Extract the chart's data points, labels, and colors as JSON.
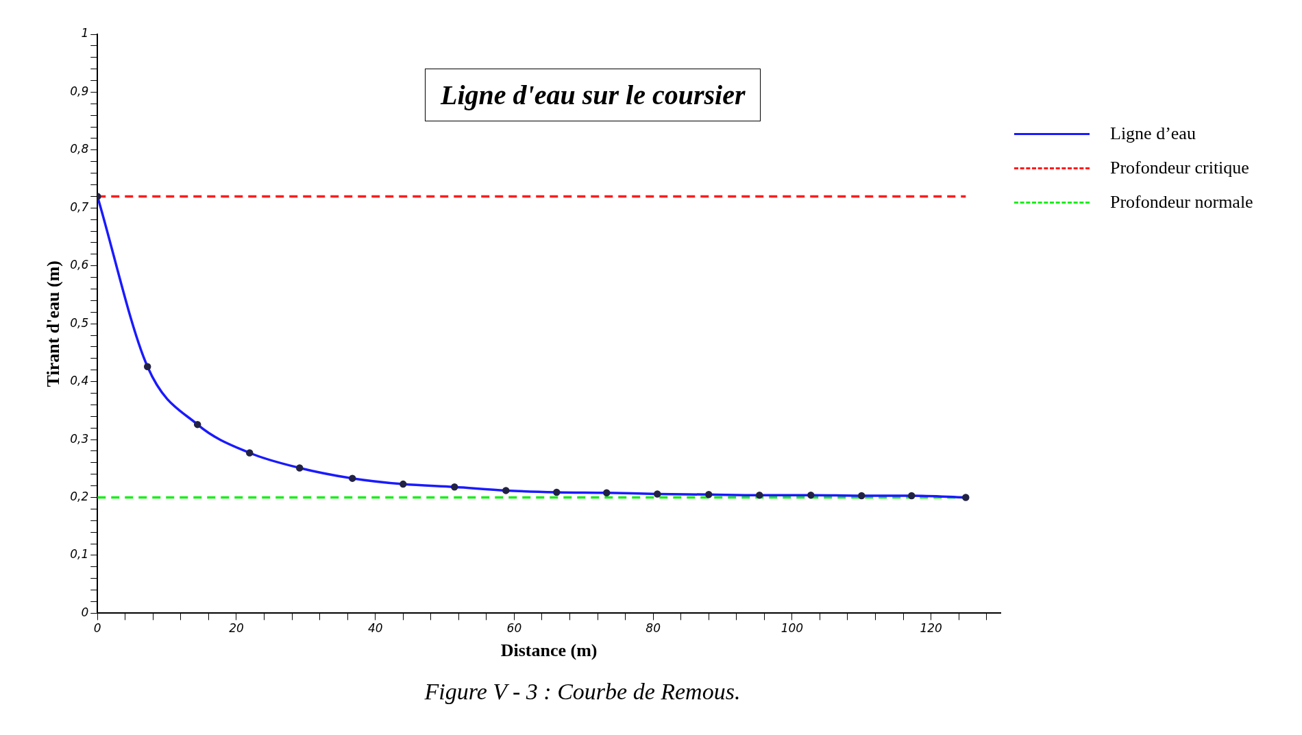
{
  "chart_data": {
    "type": "line",
    "title": "Ligne d'eau sur le coursier",
    "xlabel": "Distance (m)",
    "ylabel": "Tirant d'eau (m)",
    "series": [
      {
        "name": "Ligne d’eau",
        "color": "#1a1aff",
        "marker": "circle",
        "line_style": "solid",
        "x": [
          0,
          7.2,
          14.4,
          21.9,
          29.1,
          36.7,
          44,
          51.4,
          58.8,
          66.1,
          73.3,
          80.6,
          88,
          95.3,
          102.7,
          110,
          117.2,
          125
        ],
        "values": [
          0.72,
          0.426,
          0.326,
          0.277,
          0.251,
          0.233,
          0.223,
          0.218,
          0.212,
          0.209,
          0.208,
          0.206,
          0.205,
          0.204,
          0.204,
          0.203,
          0.203,
          0.2
        ]
      },
      {
        "name": "Profondeur critique",
        "color": "#ff1a1a",
        "marker": "none",
        "line_style": "dashed",
        "x": [
          0,
          125
        ],
        "values": [
          0.72,
          0.72
        ]
      },
      {
        "name": "Profondeur normale",
        "color": "#1aee1a",
        "marker": "none",
        "line_style": "dashed",
        "x": [
          0,
          125
        ],
        "values": [
          0.2,
          0.2
        ]
      }
    ],
    "xlim": [
      0,
      130
    ],
    "xticks": [
      0,
      {
        "value": 4,
        "label": null
      },
      {
        "value": 8,
        "label": null
      },
      {
        "value": 12,
        "label": null
      },
      {
        "value": 16,
        "label": null
      },
      20,
      {
        "value": 24,
        "label": null
      },
      {
        "value": 28,
        "label": null
      },
      {
        "value": 32,
        "label": null
      },
      {
        "value": 36,
        "label": null
      },
      40,
      {
        "value": 44,
        "label": null
      },
      {
        "value": 48,
        "label": null
      },
      {
        "value": 52,
        "label": null
      },
      {
        "value": 56,
        "label": null
      },
      60,
      {
        "value": 64,
        "label": null
      },
      {
        "value": 68,
        "label": null
      },
      {
        "value": 72,
        "label": null
      },
      {
        "value": 76,
        "label": null
      },
      80,
      {
        "value": 84,
        "label": null
      },
      {
        "value": 88,
        "label": null
      },
      {
        "value": 92,
        "label": null
      },
      {
        "value": 96,
        "label": null
      },
      100,
      {
        "value": 104,
        "label": null
      },
      {
        "value": 108,
        "label": null
      },
      {
        "value": 112,
        "label": null
      },
      {
        "value": 116,
        "label": null
      },
      120,
      {
        "value": 124,
        "label": null
      },
      {
        "value": 128,
        "label": null
      }
    ],
    "ylim": [
      0,
      1
    ],
    "yticks": [
      0,
      {
        "value": 0.02,
        "label": null
      },
      {
        "value": 0.04,
        "label": null
      },
      {
        "value": 0.06,
        "label": null
      },
      {
        "value": 0.08,
        "label": null
      },
      {
        "value": 0.1,
        "label": "0,1"
      },
      {
        "value": 0.12,
        "label": null
      },
      {
        "value": 0.14,
        "label": null
      },
      {
        "value": 0.16,
        "label": null
      },
      {
        "value": 0.18,
        "label": null
      },
      {
        "value": 0.2,
        "label": "0,2"
      },
      {
        "value": 0.22,
        "label": null
      },
      {
        "value": 0.24,
        "label": null
      },
      {
        "value": 0.26,
        "label": null
      },
      {
        "value": 0.28,
        "label": null
      },
      {
        "value": 0.3,
        "label": "0,3"
      },
      {
        "value": 0.32,
        "label": null
      },
      {
        "value": 0.34,
        "label": null
      },
      {
        "value": 0.36,
        "label": null
      },
      {
        "value": 0.38,
        "label": null
      },
      {
        "value": 0.4,
        "label": "0,4"
      },
      {
        "value": 0.42,
        "label": null
      },
      {
        "value": 0.44,
        "label": null
      },
      {
        "value": 0.46,
        "label": null
      },
      {
        "value": 0.48,
        "label": null
      },
      {
        "value": 0.5,
        "label": "0,5"
      },
      {
        "value": 0.52,
        "label": null
      },
      {
        "value": 0.54,
        "label": null
      },
      {
        "value": 0.56,
        "label": null
      },
      {
        "value": 0.58,
        "label": null
      },
      {
        "value": 0.6,
        "label": "0,6"
      },
      {
        "value": 0.62,
        "label": null
      },
      {
        "value": 0.64,
        "label": null
      },
      {
        "value": 0.66,
        "label": null
      },
      {
        "value": 0.68,
        "label": null
      },
      {
        "value": 0.7,
        "label": "0,7"
      },
      {
        "value": 0.72,
        "label": null
      },
      {
        "value": 0.74,
        "label": null
      },
      {
        "value": 0.76,
        "label": null
      },
      {
        "value": 0.78,
        "label": null
      },
      {
        "value": 0.8,
        "label": "0,8"
      },
      {
        "value": 0.82,
        "label": null
      },
      {
        "value": 0.84,
        "label": null
      },
      {
        "value": 0.86,
        "label": null
      },
      {
        "value": 0.88,
        "label": null
      },
      {
        "value": 0.9,
        "label": "0,9"
      },
      {
        "value": 0.92,
        "label": null
      },
      {
        "value": 0.94,
        "label": null
      },
      {
        "value": 0.96,
        "label": null
      },
      {
        "value": 0.98,
        "label": null
      },
      1
    ],
    "grid": false,
    "legend": "top right",
    "annotations": [
      "Figure V -  3 : Courbe de Remous."
    ]
  }
}
